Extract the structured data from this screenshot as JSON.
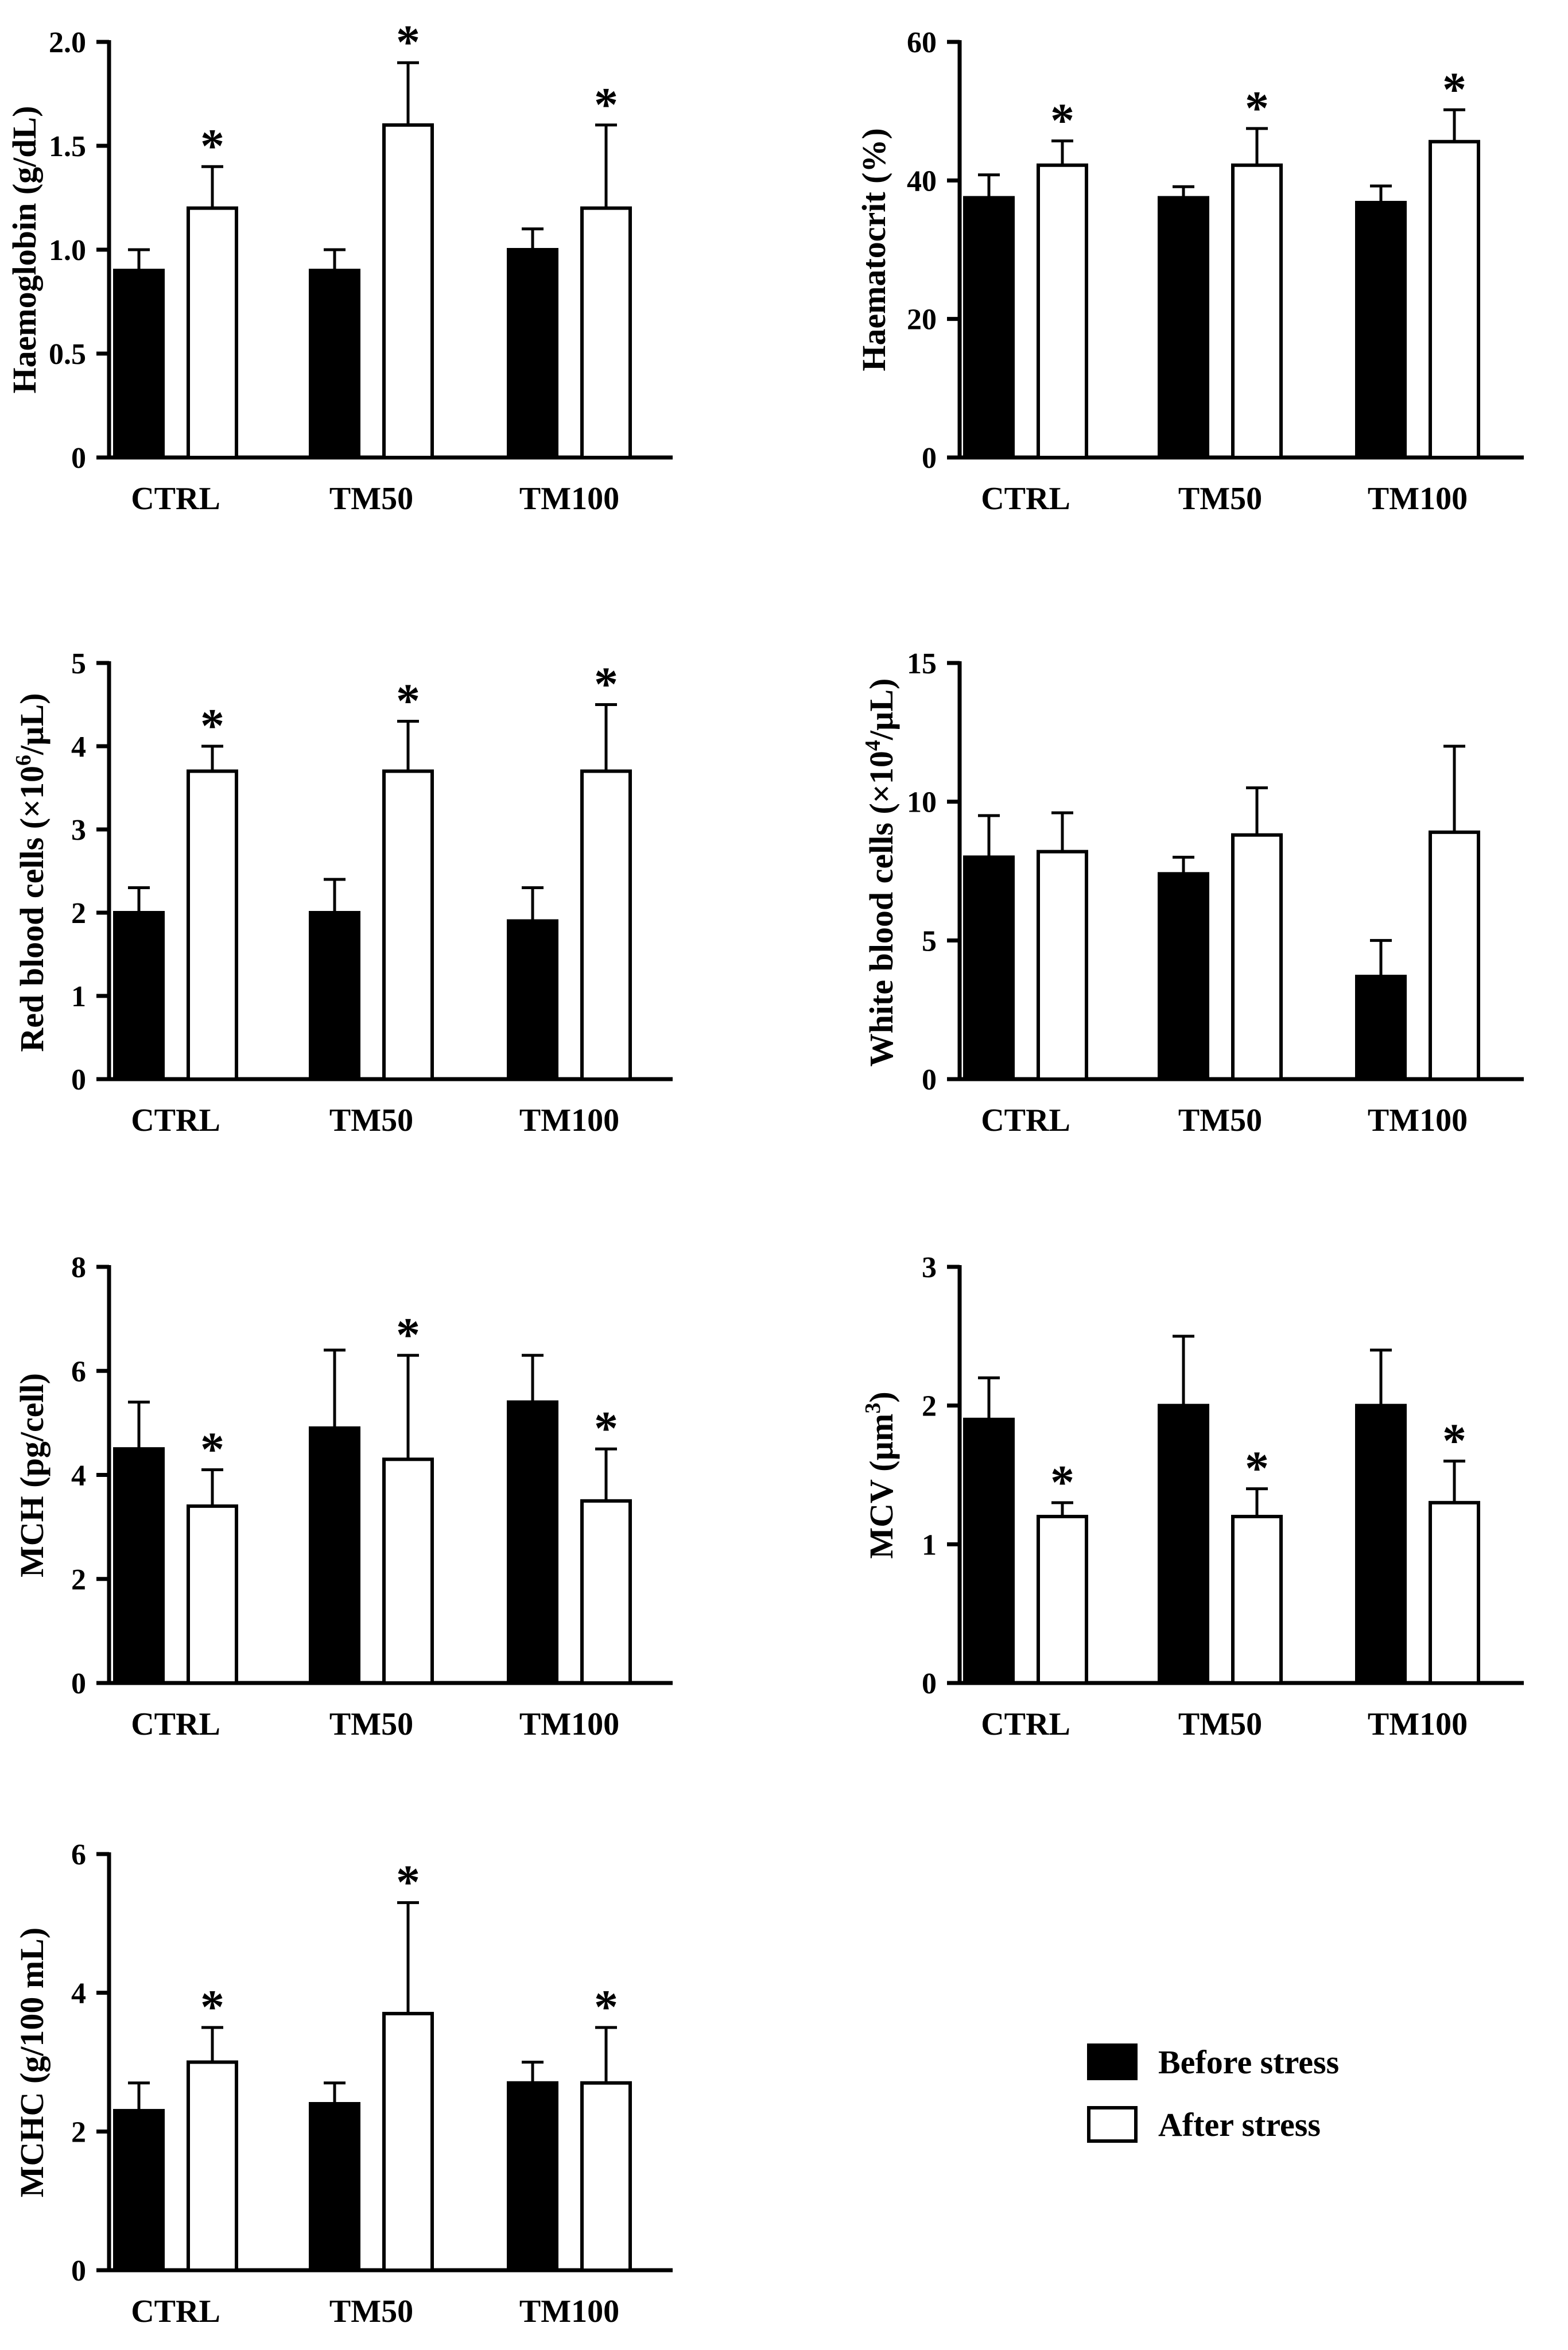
{
  "chart_data": [
    {
      "type": "bar",
      "ylabel": "Haemoglobin (g/dL)",
      "categories": [
        "CTRL",
        "TM50",
        "TM100"
      ],
      "ylim": [
        0,
        2.0
      ],
      "yticks": [
        "0",
        "0.5",
        "1.0",
        "1.5",
        "2.0"
      ],
      "ytick_values": [
        0,
        0.5,
        1.0,
        1.5,
        2.0
      ],
      "series": [
        {
          "name": "Before stress",
          "values": [
            0.9,
            0.9,
            1.0
          ],
          "errors": [
            0.1,
            0.1,
            0.1
          ],
          "stars": [
            false,
            false,
            false
          ]
        },
        {
          "name": "After stress",
          "values": [
            1.2,
            1.6,
            1.2
          ],
          "errors": [
            0.2,
            0.3,
            0.4
          ],
          "stars": [
            true,
            true,
            true
          ]
        }
      ]
    },
    {
      "type": "bar",
      "ylabel": "Haematocrit (%)",
      "categories": [
        "CTRL",
        "TM50",
        "TM100"
      ],
      "ylim": [
        0,
        60
      ],
      "yticks": [
        "0",
        "20",
        "40",
        "60"
      ],
      "ytick_values": [
        0,
        20,
        40,
        60
      ],
      "series": [
        {
          "name": "Before stress",
          "values": [
            37.5,
            37.5,
            36.8
          ],
          "errors": [
            3.3,
            1.6,
            2.4
          ],
          "stars": [
            false,
            false,
            false
          ]
        },
        {
          "name": "After stress",
          "values": [
            42.2,
            42.2,
            45.6
          ],
          "errors": [
            3.5,
            5.3,
            4.6
          ],
          "stars": [
            true,
            true,
            true
          ]
        }
      ]
    },
    {
      "type": "bar",
      "ylabel_main": "Red blood cells (×10",
      "ylabel_sup": "6",
      "ylabel_end": "/µL)",
      "categories": [
        "CTRL",
        "TM50",
        "TM100"
      ],
      "ylim": [
        0,
        5
      ],
      "yticks": [
        "0",
        "1",
        "2",
        "3",
        "4",
        "5"
      ],
      "ytick_values": [
        0,
        1,
        2,
        3,
        4,
        5
      ],
      "series": [
        {
          "name": "Before stress",
          "values": [
            2.0,
            2.0,
            1.9
          ],
          "errors": [
            0.3,
            0.4,
            0.4
          ],
          "stars": [
            false,
            false,
            false
          ]
        },
        {
          "name": "After stress",
          "values": [
            3.7,
            3.7,
            3.7
          ],
          "errors": [
            0.3,
            0.6,
            0.8
          ],
          "stars": [
            true,
            true,
            true
          ]
        }
      ]
    },
    {
      "type": "bar",
      "ylabel_main": "White blood cells (×10",
      "ylabel_sup": "4",
      "ylabel_end": "/µL)",
      "categories": [
        "CTRL",
        "TM50",
        "TM100"
      ],
      "ylim": [
        0,
        15
      ],
      "yticks": [
        "0",
        "5",
        "10",
        "15"
      ],
      "ytick_values": [
        0,
        5,
        10,
        15
      ],
      "series": [
        {
          "name": "Before stress",
          "values": [
            8.0,
            7.4,
            3.7
          ],
          "errors": [
            1.5,
            0.6,
            1.3
          ],
          "stars": [
            false,
            false,
            false
          ]
        },
        {
          "name": "After stress",
          "values": [
            8.2,
            8.8,
            8.9
          ],
          "errors": [
            1.4,
            1.7,
            3.1
          ],
          "stars": [
            false,
            false,
            false
          ]
        }
      ]
    },
    {
      "type": "bar",
      "ylabel": "MCH (pg/cell)",
      "categories": [
        "CTRL",
        "TM50",
        "TM100"
      ],
      "ylim": [
        0,
        8
      ],
      "yticks": [
        "0",
        "2",
        "4",
        "6",
        "8"
      ],
      "ytick_values": [
        0,
        2,
        4,
        6,
        8
      ],
      "series": [
        {
          "name": "Before stress",
          "values": [
            4.5,
            4.9,
            5.4
          ],
          "errors": [
            0.9,
            1.5,
            0.9
          ],
          "stars": [
            false,
            false,
            false
          ]
        },
        {
          "name": "After stress",
          "values": [
            3.4,
            4.3,
            3.5
          ],
          "errors": [
            0.7,
            2.0,
            1.0
          ],
          "stars": [
            true,
            true,
            true
          ]
        }
      ]
    },
    {
      "type": "bar",
      "ylabel_main": "MCV (µm",
      "ylabel_sup": "3",
      "ylabel_end": ")",
      "categories": [
        "CTRL",
        "TM50",
        "TM100"
      ],
      "ylim": [
        0,
        3
      ],
      "yticks": [
        "0",
        "1",
        "2",
        "3"
      ],
      "ytick_values": [
        0,
        1,
        2,
        3
      ],
      "series": [
        {
          "name": "Before stress",
          "values": [
            1.9,
            2.0,
            2.0
          ],
          "errors": [
            0.3,
            0.5,
            0.4
          ],
          "stars": [
            false,
            false,
            false
          ]
        },
        {
          "name": "After stress",
          "values": [
            1.2,
            1.2,
            1.3
          ],
          "errors": [
            0.1,
            0.2,
            0.3
          ],
          "stars": [
            true,
            true,
            true
          ]
        }
      ]
    },
    {
      "type": "bar",
      "ylabel": "MCHC (g/100 mL)",
      "categories": [
        "CTRL",
        "TM50",
        "TM100"
      ],
      "ylim": [
        0,
        6
      ],
      "yticks": [
        "0",
        "2",
        "4",
        "6"
      ],
      "ytick_values": [
        0,
        2,
        4,
        6
      ],
      "series": [
        {
          "name": "Before stress",
          "values": [
            2.3,
            2.4,
            2.7
          ],
          "errors": [
            0.4,
            0.3,
            0.3
          ],
          "stars": [
            false,
            false,
            false
          ]
        },
        {
          "name": "After stress",
          "values": [
            3.0,
            3.7,
            2.7
          ],
          "errors": [
            0.5,
            1.6,
            0.8
          ],
          "stars": [
            true,
            true,
            true
          ]
        }
      ]
    }
  ],
  "legend": {
    "items": [
      {
        "label": "Before stress",
        "fill": "#000000"
      },
      {
        "label": "After stress",
        "fill": "#ffffff"
      }
    ]
  },
  "significance_marker": "*"
}
